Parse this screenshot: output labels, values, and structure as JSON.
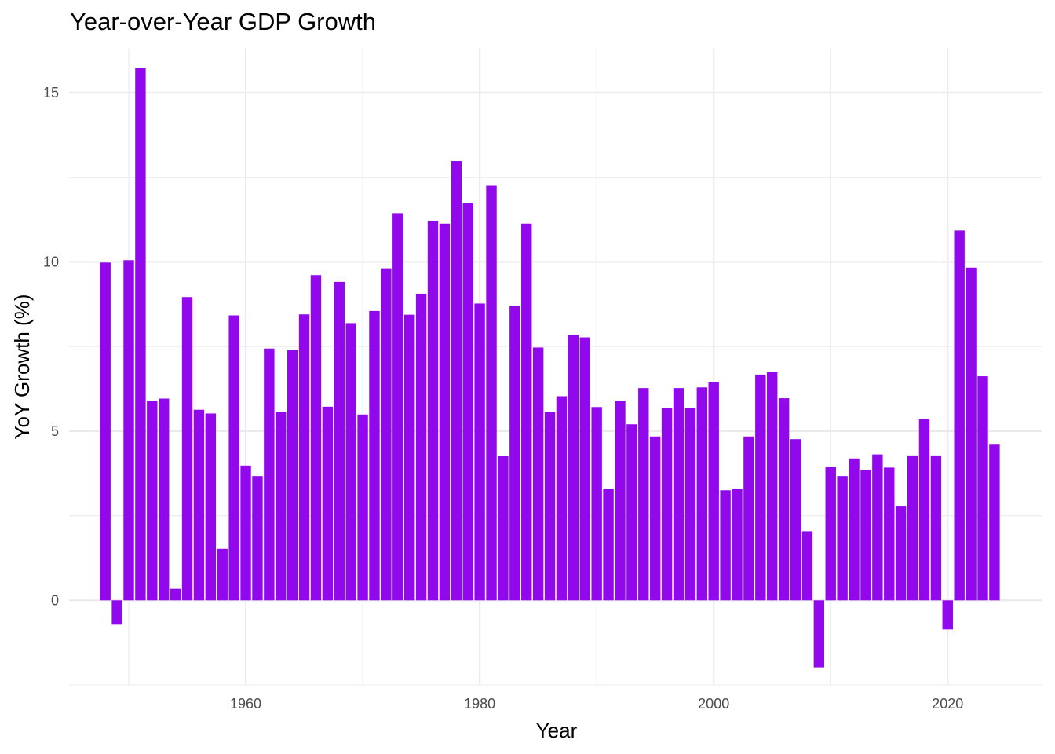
{
  "chart_data": {
    "type": "bar",
    "title": "Year-over-Year GDP Growth",
    "xlabel": "Year",
    "ylabel": "YoY Growth (%)",
    "xlim": [
      1944.9,
      2028.1
    ],
    "ylim": [
      -2.5,
      16.3
    ],
    "x_major_ticks": [
      1960,
      1980,
      2000,
      2020
    ],
    "x_minor_ticks": [
      1950,
      1970,
      1990,
      2010
    ],
    "y_major_ticks": [
      0,
      5,
      10,
      15
    ],
    "y_minor_ticks": [
      -2.5,
      2.5,
      7.5,
      12.5
    ],
    "x_tick_labels": [
      "1960",
      "1980",
      "2000",
      "2020"
    ],
    "y_tick_labels": [
      "0",
      "5",
      "10",
      "15"
    ],
    "grid": true,
    "bar_color": "#9208ED",
    "x": [
      1948,
      1949,
      1950,
      1951,
      1952,
      1953,
      1954,
      1955,
      1956,
      1957,
      1958,
      1959,
      1960,
      1961,
      1962,
      1963,
      1964,
      1965,
      1966,
      1967,
      1968,
      1969,
      1970,
      1971,
      1972,
      1973,
      1974,
      1975,
      1976,
      1977,
      1978,
      1979,
      1980,
      1981,
      1982,
      1983,
      1984,
      1985,
      1986,
      1987,
      1988,
      1989,
      1990,
      1991,
      1992,
      1993,
      1994,
      1995,
      1996,
      1997,
      1998,
      1999,
      2000,
      2001,
      2002,
      2003,
      2004,
      2005,
      2006,
      2007,
      2008,
      2009,
      2010,
      2011,
      2012,
      2013,
      2014,
      2015,
      2016,
      2017,
      2018,
      2019,
      2020,
      2021,
      2022,
      2023,
      2024
    ],
    "values": [
      9.98,
      -0.72,
      10.05,
      15.72,
      5.89,
      5.96,
      0.34,
      8.96,
      5.63,
      5.52,
      1.52,
      8.42,
      3.98,
      3.67,
      7.44,
      5.57,
      7.39,
      8.45,
      9.61,
      5.72,
      9.41,
      8.19,
      5.49,
      8.55,
      9.81,
      11.44,
      8.44,
      9.06,
      11.21,
      11.13,
      12.98,
      11.74,
      8.77,
      12.25,
      4.26,
      8.7,
      11.13,
      7.47,
      5.56,
      6.03,
      7.85,
      7.77,
      5.71,
      3.3,
      5.89,
      5.2,
      6.27,
      4.84,
      5.68,
      6.27,
      5.68,
      6.29,
      6.45,
      3.25,
      3.3,
      4.84,
      6.67,
      6.74,
      5.97,
      4.76,
      2.04,
      -1.98,
      3.95,
      3.67,
      4.19,
      3.86,
      4.31,
      3.92,
      2.79,
      4.28,
      5.35,
      4.28,
      -0.86,
      10.93,
      9.83,
      6.62,
      4.62
    ]
  }
}
